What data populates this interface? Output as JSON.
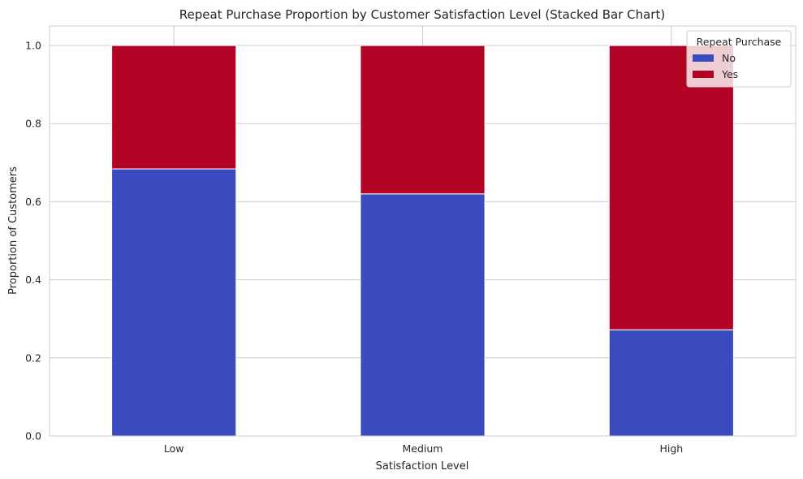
{
  "chart_data": {
    "type": "bar",
    "stacked": true,
    "title": "Repeat Purchase Proportion by Customer Satisfaction Level (Stacked Bar Chart)",
    "xlabel": "Satisfaction Level",
    "ylabel": "Proportion of Customers",
    "categories": [
      "Low",
      "Medium",
      "High"
    ],
    "ylim": [
      0,
      1.05
    ],
    "yticks": [
      "0.0",
      "0.2",
      "0.4",
      "0.6",
      "0.8",
      "1.0"
    ],
    "grid": true,
    "legend": {
      "title": "Repeat Purchase",
      "placement": "top-right"
    },
    "series": [
      {
        "name": "No",
        "color": "#3b4cc0",
        "values": [
          0.684,
          0.62,
          0.272
        ]
      },
      {
        "name": "Yes",
        "color": "#b40426",
        "values": [
          0.316,
          0.38,
          0.728
        ]
      }
    ]
  }
}
